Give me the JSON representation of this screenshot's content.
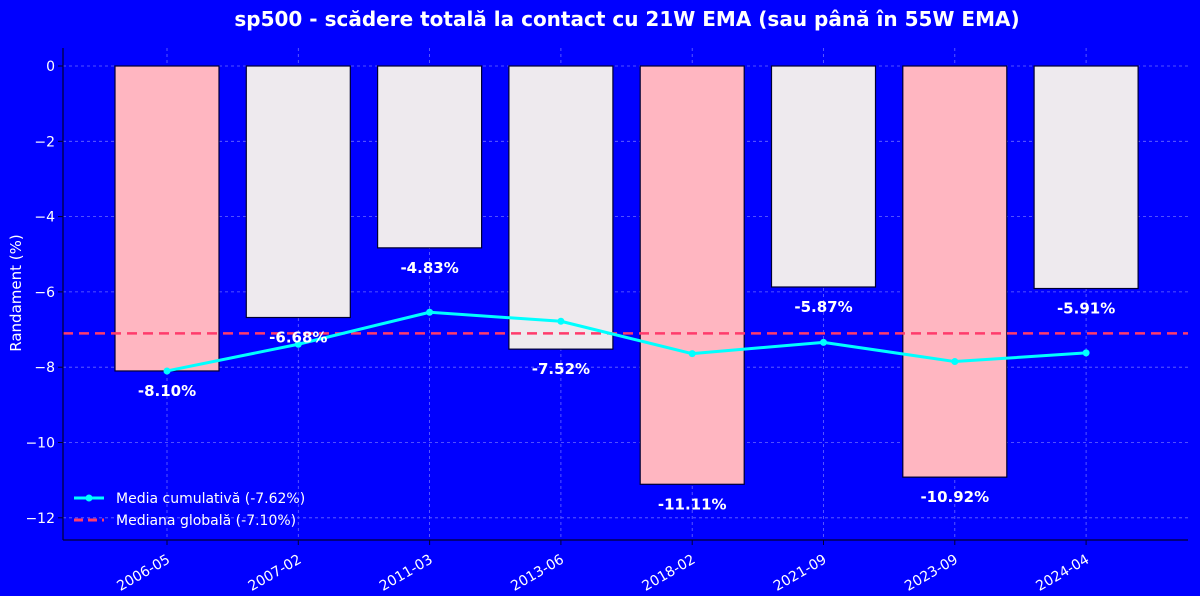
{
  "chart_data": {
    "type": "bar",
    "title": "sp500 - scădere totală la contact cu 21W EMA (sau până în 55W EMA)",
    "xlabel": "",
    "ylabel": "Randament (%)",
    "ylim": [
      -12.5,
      0.5
    ],
    "yticks": [
      0,
      -2,
      -4,
      -6,
      -8,
      -10,
      -12
    ],
    "ytick_labels": [
      "0",
      "−2",
      "−4",
      "−6",
      "−8",
      "−10",
      "−12"
    ],
    "grid": true,
    "categories": [
      "2006-05",
      "2007-02",
      "2011-03",
      "2013-06",
      "2018-02",
      "2021-09",
      "2023-09",
      "2024-04"
    ],
    "values": [
      -8.1,
      -6.68,
      -4.83,
      -7.52,
      -11.11,
      -5.87,
      -10.92,
      -5.91
    ],
    "value_labels": [
      "-8.10%",
      "-6.68%",
      "-4.83%",
      "-7.52%",
      "-11.11%",
      "-5.87%",
      "-10.92%",
      "-5.91%"
    ],
    "bar_colors": [
      "#FFB6C1",
      "#EEEAEE",
      "#EEEAEE",
      "#EEEAEE",
      "#FFB6C1",
      "#EEEAEE",
      "#FFB6C1",
      "#EEEAEE"
    ],
    "series": [
      {
        "name": "Media cumulativă (-7.62%)",
        "type": "line",
        "color": "#00FFFF",
        "values": [
          -8.1,
          -7.39,
          -6.54,
          -6.78,
          -7.64,
          -7.34,
          -7.85,
          -7.62
        ]
      },
      {
        "name": "Mediana globală (-7.10%)",
        "type": "hline",
        "color": "#FF3B6B",
        "value": -7.1
      }
    ],
    "legend_position": "bottom-left",
    "colors": {
      "background": "#0000FF",
      "text": "#FFFFFF",
      "grid": "#6A6AFF",
      "bar_edge": "#000033"
    }
  }
}
